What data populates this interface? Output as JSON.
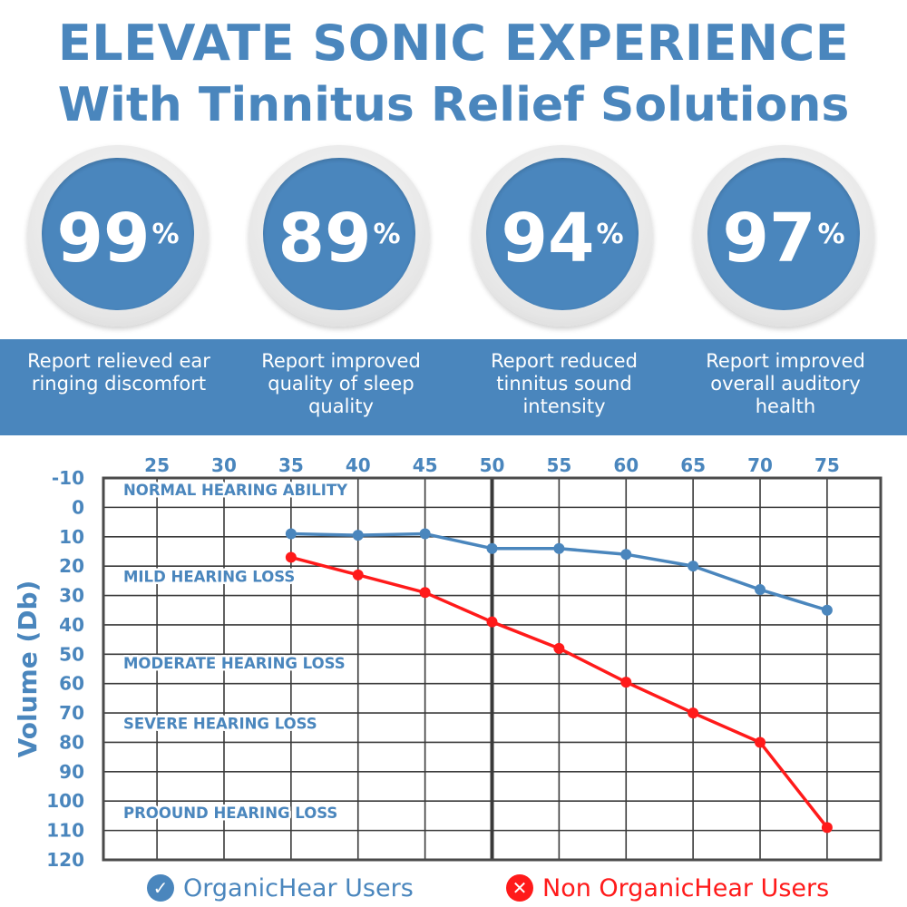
{
  "header": {
    "line1": "ELEVATE SONIC EXPERIENCE",
    "line2": "With Tinnitus Relief Solutions"
  },
  "stats": [
    {
      "value": "99",
      "unit": "%",
      "label": "Report relieved ear ringing discomfort"
    },
    {
      "value": "89",
      "unit": "%",
      "label": "Report improved quality of sleep quality"
    },
    {
      "value": "94",
      "unit": "%",
      "label": "Report reduced tinnitus sound intensity"
    },
    {
      "value": "97",
      "unit": "%",
      "label": "Report improved overall auditory health"
    }
  ],
  "colors": {
    "brand_blue": "#4a86bd",
    "red": "#ff1a1a",
    "grid": "#3a3a3a"
  },
  "chart_data": {
    "type": "line",
    "title": "",
    "ylabel": "Volume (Db)",
    "xlabel": "",
    "x_ticks": [
      25,
      30,
      35,
      40,
      45,
      50,
      55,
      60,
      65,
      70,
      75
    ],
    "y_ticks": [
      -10,
      0,
      10,
      20,
      30,
      40,
      50,
      60,
      70,
      80,
      90,
      100,
      110,
      120
    ],
    "xlim": [
      21,
      79
    ],
    "ylim": [
      -10,
      120
    ],
    "y_inverted": true,
    "grid": true,
    "emphasis_x": 50,
    "zones": [
      {
        "label": "NORMAL HEARING ABILITY",
        "y": -6
      },
      {
        "label": "MILD HEARING LOSS",
        "y": 23.5
      },
      {
        "label": "MODERATE HEARING LOSS",
        "y": 53
      },
      {
        "label": "SEVERE HEARING LOSS",
        "y": 73.5
      },
      {
        "label": "PROOUND HEARING LOSS",
        "y": 104
      }
    ],
    "series": [
      {
        "name": "OrganicHear Users",
        "color": "#4a86bd",
        "x": [
          35,
          40,
          45,
          50,
          55,
          60,
          65,
          70,
          75
        ],
        "values": [
          9,
          9.5,
          9,
          14,
          14,
          16,
          20,
          28,
          35
        ]
      },
      {
        "name": "Non OrganicHear Users",
        "color": "#ff1a1a",
        "x": [
          35,
          40,
          45,
          50,
          55,
          60,
          65,
          70,
          75
        ],
        "values": [
          17,
          23,
          29,
          39,
          48,
          59.5,
          70,
          80,
          109
        ]
      }
    ],
    "legend": [
      {
        "label": "OrganicHear Users",
        "icon": "check-icon",
        "symbol": "✓"
      },
      {
        "label": "Non OrganicHear Users",
        "icon": "cross-icon",
        "symbol": "✕"
      }
    ]
  }
}
